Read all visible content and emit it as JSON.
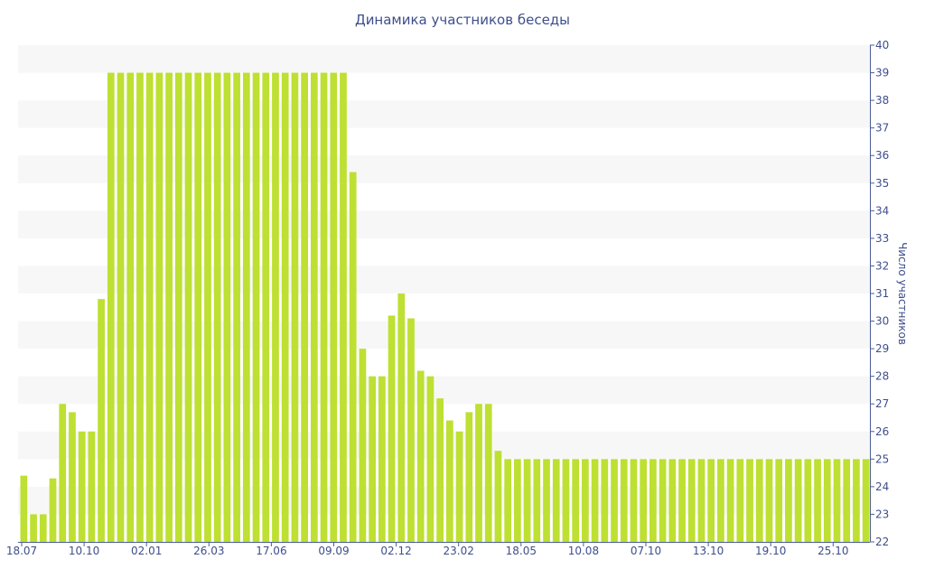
{
  "chart_data": {
    "type": "bar",
    "title": "Динамика участников беседы",
    "ylabel": "Число участников",
    "xlabel": "",
    "ylim": [
      22,
      40
    ],
    "y_ticks": [
      22,
      23,
      24,
      25,
      26,
      27,
      28,
      29,
      30,
      31,
      32,
      33,
      34,
      35,
      36,
      37,
      38,
      39,
      40
    ],
    "y_axis_side": "right",
    "grid": "alternating horizontal bands",
    "x_tick_labels": [
      "18.07",
      "10.10",
      "02.01",
      "26.03",
      "17.06",
      "09.09",
      "02.12",
      "23.02",
      "18.05",
      "10.08",
      "07.10",
      "13.10",
      "19.10",
      "25.10"
    ],
    "values": [
      24.4,
      23,
      23,
      24.3,
      27,
      26.7,
      26,
      26,
      30.8,
      39,
      39,
      39,
      39,
      39,
      39,
      39,
      39,
      39,
      39,
      39,
      39,
      39,
      39,
      39,
      39,
      39,
      39,
      39,
      39,
      39,
      39,
      39,
      39,
      39,
      35.4,
      29,
      28,
      28,
      30.2,
      31,
      30.1,
      28.2,
      28,
      27.2,
      26.4,
      26,
      26.7,
      27,
      27,
      25.3,
      25,
      25,
      25,
      25,
      25,
      25,
      25,
      25,
      25,
      25,
      25,
      25,
      25,
      25,
      25,
      25,
      25,
      25,
      25,
      25,
      25,
      25,
      25,
      25,
      25,
      25,
      25,
      25,
      25,
      25,
      25,
      25,
      25,
      25,
      25,
      25,
      25,
      25
    ],
    "colors": {
      "bar": "#bde032",
      "band": "#f7f7f7",
      "text": "#3e4e8c",
      "axis": "#4b5c99"
    }
  }
}
